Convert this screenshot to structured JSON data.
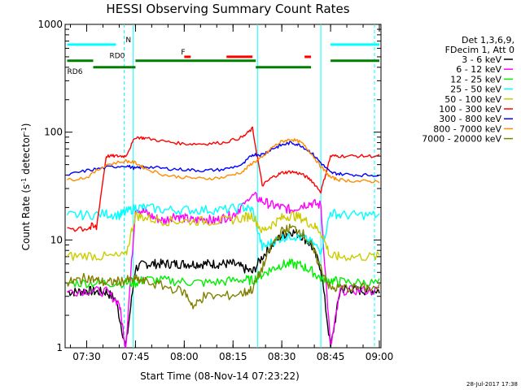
{
  "chart_data": {
    "type": "line",
    "title": "HESSI Observing Summary Count Rates",
    "xlabel": "Start Time (08-Nov-14 07:23:22)",
    "ylabel_main": "Count Rate (s",
    "ylabel_sup1": "-1",
    "ylabel_mid": " detector",
    "ylabel_sup2": "-1",
    "ylabel_end": ")",
    "yscale": "log",
    "ylim": [
      1,
      1000
    ],
    "y_ticks": [
      {
        "v": 1,
        "label": "1"
      },
      {
        "v": 10,
        "label": "10"
      },
      {
        "v": 100,
        "label": "100"
      },
      {
        "v": 1000,
        "label": "1000"
      }
    ],
    "xlim": [
      "07:23:22",
      "09:00:30"
    ],
    "x_ticks": [
      {
        "t": "07:30",
        "label": "07:30"
      },
      {
        "t": "07:45",
        "label": "07:45"
      },
      {
        "t": "08:00",
        "label": "08:00"
      },
      {
        "t": "08:15",
        "label": "08:15"
      },
      {
        "t": "08:30",
        "label": "08:30"
      },
      {
        "t": "08:45",
        "label": "08:45"
      },
      {
        "t": "09:00",
        "label": "09:00"
      }
    ],
    "legend": {
      "placement": "right",
      "header": [
        "Det 1,3,6,9,",
        "FDecim 1, Att 0"
      ]
    },
    "series": [
      {
        "name": "3 - 6 keV",
        "color": "#000000",
        "x": [
          "07:24",
          "07:27",
          "07:30",
          "07:33",
          "07:36",
          "07:39",
          "07:42",
          "07:45",
          "07:48",
          "07:51",
          "07:54",
          "07:57",
          "08:00",
          "08:03",
          "08:06",
          "08:09",
          "08:12",
          "08:15",
          "08:18",
          "08:21",
          "08:24",
          "08:27",
          "08:30",
          "08:33",
          "08:36",
          "08:39",
          "08:42",
          "08:45",
          "08:48",
          "08:51",
          "08:54",
          "08:57",
          "09:00"
        ],
        "y": [
          3.3,
          3.3,
          3.4,
          3.3,
          3.3,
          2.8,
          1.0,
          5.5,
          6,
          6,
          6,
          6,
          6,
          6,
          6,
          6,
          6,
          6,
          5.5,
          5.0,
          7,
          9,
          11,
          12,
          11,
          9,
          5.5,
          1.0,
          3.5,
          3.5,
          3.4,
          3.4,
          3.4
        ]
      },
      {
        "name": "6 - 12 keV",
        "color": "#ff00ff",
        "x": [
          "07:24",
          "07:30",
          "07:36",
          "07:40",
          "07:42",
          "07:45",
          "07:48",
          "07:51",
          "07:54",
          "07:57",
          "08:00",
          "08:03",
          "08:06",
          "08:09",
          "08:12",
          "08:15",
          "08:18",
          "08:21",
          "08:24",
          "08:27",
          "08:30",
          "08:33",
          "08:36",
          "08:39",
          "08:42",
          "08:45",
          "08:48",
          "08:54",
          "09:00"
        ],
        "y": [
          3.3,
          3.4,
          3.3,
          2.6,
          1.0,
          20,
          18,
          16,
          15,
          17,
          16,
          15,
          16,
          15,
          16,
          17,
          21,
          26,
          23,
          21,
          20,
          19,
          21,
          22,
          21,
          1.0,
          3.4,
          3.4,
          3.4
        ]
      },
      {
        "name": "12 - 25 keV",
        "color": "#00ee00",
        "x": [
          "07:24",
          "07:30",
          "07:36",
          "07:42",
          "07:45",
          "07:48",
          "07:54",
          "08:00",
          "08:06",
          "08:12",
          "08:18",
          "08:21",
          "08:24",
          "08:27",
          "08:30",
          "08:33",
          "08:36",
          "08:39",
          "08:42",
          "08:45",
          "08:48",
          "08:54",
          "09:00"
        ],
        "y": [
          4,
          4,
          4,
          4,
          4,
          4.3,
          4.2,
          4.1,
          4.0,
          4.1,
          4.3,
          4.2,
          4.8,
          5.4,
          5.9,
          6.0,
          5.8,
          5.2,
          4.4,
          4.2,
          4.1,
          4.0,
          4.0
        ]
      },
      {
        "name": "25 - 50 keV",
        "color": "#00ffff",
        "x": [
          "07:24",
          "07:30",
          "07:36",
          "07:40",
          "07:42",
          "07:45",
          "07:48",
          "07:54",
          "08:00",
          "08:06",
          "08:12",
          "08:18",
          "08:21",
          "08:24",
          "08:27",
          "08:30",
          "08:33",
          "08:36",
          "08:39",
          "08:42",
          "08:45",
          "08:48",
          "08:54",
          "09:00"
        ],
        "y": [
          17,
          17,
          17.5,
          17,
          18,
          20,
          20,
          19,
          19,
          19,
          19,
          20,
          19,
          8.5,
          9.5,
          10.5,
          11,
          10.5,
          9.5,
          8.0,
          18,
          17,
          17,
          17
        ]
      },
      {
        "name": "50 - 100 keV",
        "color": "#cccc00",
        "x": [
          "07:24",
          "07:30",
          "07:36",
          "07:42",
          "07:45",
          "07:48",
          "07:54",
          "08:00",
          "08:06",
          "08:12",
          "08:18",
          "08:21",
          "08:24",
          "08:27",
          "08:30",
          "08:33",
          "08:36",
          "08:39",
          "08:42",
          "08:45",
          "08:48",
          "08:54",
          "09:00"
        ],
        "y": [
          7,
          7.2,
          7.0,
          7.1,
          17,
          16,
          15,
          15,
          15,
          15,
          16,
          17,
          12,
          14,
          16,
          17,
          16,
          14,
          12,
          7,
          7,
          7,
          7
        ]
      },
      {
        "name": "100 - 300 keV",
        "color": "#ff0000",
        "x": [
          "07:24",
          "07:30",
          "07:33",
          "07:36",
          "07:39",
          "07:42",
          "07:45",
          "07:48",
          "07:54",
          "08:00",
          "08:06",
          "08:12",
          "08:18",
          "08:21",
          "08:24",
          "08:27",
          "08:30",
          "08:33",
          "08:36",
          "08:39",
          "08:42",
          "08:45",
          "08:48",
          "08:54",
          "09:00"
        ],
        "y": [
          13,
          13,
          13,
          60,
          60,
          60,
          90,
          88,
          82,
          78,
          78,
          80,
          90,
          108,
          32,
          38,
          42,
          43,
          41,
          36,
          28,
          60,
          60,
          60,
          60
        ]
      },
      {
        "name": "300 - 800 keV",
        "color": "#0000ff",
        "x": [
          "07:24",
          "07:30",
          "07:36",
          "07:42",
          "07:45",
          "07:48",
          "07:54",
          "08:00",
          "08:06",
          "08:12",
          "08:18",
          "08:21",
          "08:24",
          "08:27",
          "08:30",
          "08:33",
          "08:36",
          "08:39",
          "08:42",
          "08:45",
          "08:48",
          "08:54",
          "09:00"
        ],
        "y": [
          40,
          44,
          47,
          49,
          46,
          48,
          46,
          45,
          44,
          45,
          50,
          62,
          62,
          70,
          76,
          80,
          75,
          65,
          52,
          42,
          41,
          40,
          40
        ]
      },
      {
        "name": "800 - 7000 keV",
        "color": "#ff8c00",
        "x": [
          "07:24",
          "07:30",
          "07:36",
          "07:42",
          "07:45",
          "07:48",
          "07:54",
          "08:00",
          "08:06",
          "08:12",
          "08:18",
          "08:21",
          "08:24",
          "08:27",
          "08:30",
          "08:33",
          "08:36",
          "08:39",
          "08:42",
          "08:45",
          "08:48",
          "08:54",
          "09:00"
        ],
        "y": [
          36,
          38,
          50,
          54,
          52,
          46,
          40,
          38,
          37,
          38,
          43,
          52,
          58,
          72,
          82,
          86,
          80,
          64,
          48,
          38,
          36,
          35,
          35
        ]
      },
      {
        "name": "7000 - 20000 keV",
        "color": "#808000",
        "x": [
          "07:24",
          "07:27",
          "07:30",
          "07:33",
          "07:36",
          "07:39",
          "07:42",
          "07:45",
          "07:48",
          "07:54",
          "08:00",
          "08:03",
          "08:06",
          "08:12",
          "08:18",
          "08:21",
          "08:24",
          "08:27",
          "08:30",
          "08:33",
          "08:36",
          "08:39",
          "08:42",
          "08:45",
          "08:48",
          "08:54",
          "09:00"
        ],
        "y": [
          4.0,
          4.2,
          4.5,
          4.2,
          4.0,
          4.1,
          4.2,
          4.3,
          4.1,
          3.7,
          3.3,
          2.4,
          3.0,
          3.0,
          3.2,
          3.5,
          5.5,
          9,
          12,
          13,
          12,
          9,
          5.5,
          3.5,
          3.6,
          3.6,
          3.6
        ]
      }
    ],
    "state_bars": [
      {
        "label": "N",
        "color": "#00ffff",
        "y": 650,
        "label_at": "07:42",
        "segments": [
          [
            "07:24",
            "07:39"
          ],
          [
            "08:45",
            "09:00"
          ]
        ]
      },
      {
        "label": "F",
        "color": "#ff0000",
        "y": 500,
        "label_at": "07:59",
        "segments": [
          [
            "08:00",
            "08:02"
          ],
          [
            "08:13",
            "08:21"
          ],
          [
            "08:37",
            "08:39"
          ]
        ]
      },
      {
        "label": "RD0",
        "color": "#008000",
        "y": 460,
        "label_at": "07:37",
        "segments": [
          [
            "07:24",
            "07:32"
          ],
          [
            "07:45",
            "08:22"
          ],
          [
            "08:45",
            "09:00"
          ]
        ]
      },
      {
        "label": "RD6",
        "color": "#008000",
        "y": 400,
        "label_at": "07:24",
        "segments": [
          [
            "07:32",
            "07:45"
          ],
          [
            "08:22",
            "08:39"
          ]
        ]
      }
    ],
    "vlines": [
      {
        "t": "07:44:20",
        "color": "#00ffff",
        "dashed": false
      },
      {
        "t": "08:22:30",
        "color": "#00ffff",
        "dashed": false
      },
      {
        "t": "08:42:00",
        "color": "#00ffff",
        "dashed": false
      },
      {
        "t": "07:41:30",
        "color": "#00ffff",
        "dashed": true
      },
      {
        "t": "08:58:30",
        "color": "#00ffff",
        "dashed": true
      }
    ],
    "timestamp": "28-Jul-2017 17:38"
  }
}
